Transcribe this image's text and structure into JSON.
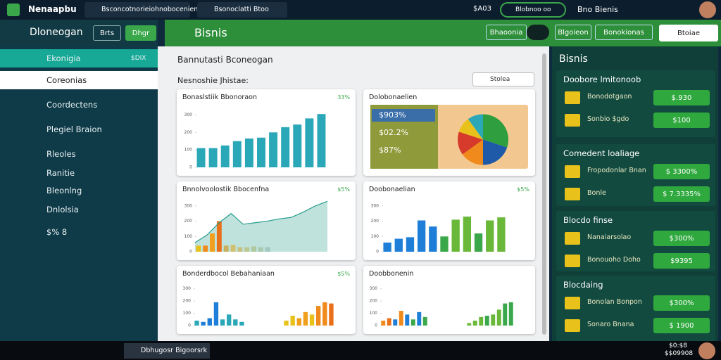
{
  "topbar": {
    "app": "Nenaapbu",
    "tabs": [
      "Bsconcotnorieiohnobocenien",
      "Bsonoclatti Btoo"
    ],
    "status": "$A03",
    "pill": "Blobnoo oo",
    "user": "Bno Bienis"
  },
  "sidebar": {
    "title": "Dloneogan",
    "buttons": [
      "Brts",
      "Dhgr"
    ],
    "items": [
      {
        "label": "Ekonigia",
        "badge": "$DIX"
      },
      {
        "label": "Coreonias"
      },
      {
        "label": "Coordectens"
      },
      {
        "label": "Plegiel Braion"
      },
      {
        "label": "Rleoles"
      },
      {
        "label": "Ranitie"
      },
      {
        "label": "Bleonlng"
      },
      {
        "label": "Dnlolsia"
      },
      {
        "label": "$% 8"
      }
    ]
  },
  "header": {
    "title": "Bisnis",
    "buttons": [
      "Bhaoonia",
      "Blgoieon",
      "Bonokionas",
      "Btoiae"
    ]
  },
  "main": {
    "title": "Bannutasti Bconeogan",
    "subtitle": "Nesnoshie Jhistae:",
    "search": "Stolea"
  },
  "charts": [
    {
      "type": "bar",
      "title": "Bonaslstiik Bbonoraon",
      "badge": "33%",
      "ylim": [
        0,
        350
      ],
      "yticks": [
        0,
        100,
        200,
        300
      ],
      "values": [
        110,
        110,
        125,
        150,
        165,
        170,
        200,
        230,
        245,
        280,
        305
      ],
      "colors": [
        "#2aa8b8",
        "#2aa8b8",
        "#2aa8b8",
        "#2aa8b8",
        "#2aa8b8",
        "#2aa8b8",
        "#2aa8b8",
        "#2aa8b8",
        "#2aa8b8",
        "#2aa8b8",
        "#2aa8b8"
      ]
    },
    {
      "type": "pie",
      "title": "Dolobonaelien",
      "labels": [
        "$903%",
        "$02.2%",
        "$87%"
      ],
      "values": [
        30,
        20,
        15,
        15,
        10,
        10
      ],
      "colors": [
        "#2e9e3e",
        "#1f5aa8",
        "#f08a1c",
        "#d63a2a",
        "#e8c21a",
        "#2aa8b8"
      ]
    },
    {
      "type": "bar-line",
      "title": "Bnnolvoolostik Bbocenfna",
      "badge": "$5%",
      "ylim": [
        0,
        350
      ],
      "yticks": [
        0,
        100,
        200,
        300
      ],
      "values": [
        40,
        40,
        120,
        200,
        40,
        45,
        30,
        30,
        35,
        30,
        30
      ],
      "colors": [
        "#e8c21a",
        "#f08a1c",
        "#f0a01c",
        "#e8701a",
        "#c8b060",
        "#d0c070",
        "#c8c080",
        "#b8c890",
        "#b0c8a0",
        "#a8c8b0",
        "#a0c8c0"
      ],
      "line": [
        60,
        110,
        190,
        250,
        180,
        190,
        200,
        215,
        225,
        260,
        300,
        330
      ],
      "line_color": "#2a9d8f"
    },
    {
      "type": "bar",
      "title": "Doobonaelian",
      "badge": "$5%",
      "ylim": [
        0,
        350
      ],
      "yticks": [
        0,
        100,
        200,
        300
      ],
      "values": [
        60,
        85,
        95,
        205,
        165,
        100,
        210,
        230,
        120,
        205,
        225
      ],
      "colors": [
        "#1f7fd8",
        "#1f7fd8",
        "#1f7fd8",
        "#1f7fd8",
        "#1f7fd8",
        "#3aa84a",
        "#6ab83a",
        "#6ab83a",
        "#3aa84a",
        "#6ab83a",
        "#6ab83a"
      ]
    },
    {
      "type": "bar-pair",
      "title": "Bonderdbocol Bebahaniaan",
      "badge": "$5%",
      "ylim": [
        0,
        350
      ],
      "yticks": [
        0,
        100,
        200,
        300
      ],
      "groups": [
        {
          "values": [
            40,
            30,
            60,
            190,
            50,
            90,
            50,
            30
          ],
          "colors": [
            "#2aa8b8",
            "#1f7fd8",
            "#1f7fd8",
            "#1f7fd8",
            "#2aa8b8",
            "#2aa8b8",
            "#2aa8b8",
            "#2aa8b8"
          ]
        },
        {
          "values": [
            40,
            80,
            60,
            110,
            90,
            160,
            190,
            180
          ],
          "colors": [
            "#e8c21a",
            "#e8c21a",
            "#f0a01c",
            "#f0a01c",
            "#e8c21a",
            "#f08a1c",
            "#f08a1c",
            "#e8701a"
          ]
        }
      ]
    },
    {
      "type": "bar-pair",
      "title": "Doobbonenin",
      "badge": "",
      "ylim": [
        0,
        350
      ],
      "yticks": [
        0,
        100,
        200,
        300
      ],
      "groups": [
        {
          "values": [
            40,
            60,
            50,
            120,
            90,
            50,
            110,
            70
          ],
          "colors": [
            "#f08a1c",
            "#e8701a",
            "#1f7fd8",
            "#f08a1c",
            "#1f7fd8",
            "#3aa84a",
            "#1f7fd8",
            "#3aa84a"
          ]
        },
        {
          "values": [
            20,
            40,
            70,
            80,
            90,
            130,
            180,
            190
          ],
          "colors": [
            "#6ab83a",
            "#6ab83a",
            "#6ab83a",
            "#3aa84a",
            "#6ab83a",
            "#6ab83a",
            "#3aa84a",
            "#3aa84a"
          ]
        }
      ]
    }
  ],
  "panel": {
    "title": "Bisnis",
    "sections": [
      {
        "title": "Doobore lmitonoob",
        "items": [
          {
            "label": "Bonodotgaon",
            "value": "$.930"
          },
          {
            "label": "Sonbio $gdo",
            "value": "$100"
          }
        ]
      },
      {
        "title": "Comedent loaliage",
        "items": [
          {
            "label": "Fropodonlar Bnan",
            "value": "$ 3300%"
          },
          {
            "label": "Bonle",
            "value": "$ 7.3335%"
          }
        ]
      },
      {
        "title": "Blocdo finse",
        "items": [
          {
            "label": "Nanaiarsolao",
            "value": "$300%"
          },
          {
            "label": "Bonouoho Doho",
            "value": "$9395"
          }
        ]
      },
      {
        "title": "Blocdaing",
        "items": [
          {
            "label": "Bonolan Bonpon",
            "value": "$300%"
          },
          {
            "label": "Sonaro Bnana",
            "value": "$ 1900"
          }
        ]
      }
    ]
  },
  "taskbar": {
    "window": "Dbhugosr Bigoorsrk",
    "time": "$0:$8",
    "date": "$$09908"
  }
}
